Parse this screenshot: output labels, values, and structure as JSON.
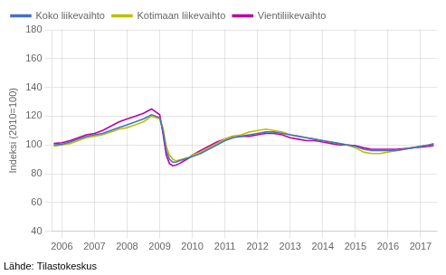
{
  "chart_data": {
    "type": "line",
    "ylabel": "Indeksi (2010=100)",
    "annotations": [
      "Lähde: Tilastokeskus"
    ],
    "xlim": [
      2005.7,
      2017.5
    ],
    "xticks": [
      2006,
      2007,
      2008,
      2009,
      2010,
      2011,
      2012,
      2013,
      2014,
      2015,
      2016,
      2017
    ],
    "ylim": [
      40,
      180
    ],
    "yticks": [
      40,
      60,
      80,
      100,
      120,
      140,
      160,
      180
    ],
    "grid": true,
    "legend": "upper left",
    "x": [
      2005.75,
      2006.0,
      2006.25,
      2006.5,
      2006.75,
      2007.0,
      2007.25,
      2007.5,
      2007.75,
      2008.0,
      2008.25,
      2008.5,
      2008.75,
      2009.0,
      2009.1,
      2009.2,
      2009.3,
      2009.4,
      2009.5,
      2009.6,
      2009.75,
      2009.9,
      2010.0,
      2010.25,
      2010.5,
      2010.75,
      2011.0,
      2011.25,
      2011.5,
      2011.75,
      2012.0,
      2012.25,
      2012.5,
      2012.75,
      2013.0,
      2013.25,
      2013.5,
      2013.75,
      2014.0,
      2014.25,
      2014.5,
      2014.75,
      2015.0,
      2015.25,
      2015.5,
      2015.75,
      2016.0,
      2016.25,
      2016.5,
      2016.75,
      2017.0,
      2017.25,
      2017.4
    ],
    "series": [
      {
        "name": "Koko liikevaihto",
        "color": "#4472C4",
        "values": [
          100,
          100.5,
          102,
          104,
          106,
          107,
          108,
          110,
          112,
          114,
          116,
          118,
          121,
          119,
          110,
          96,
          90,
          88,
          88,
          89,
          90,
          91,
          92,
          94,
          97,
          100,
          103,
          105,
          106,
          107,
          108,
          109,
          109,
          108,
          107,
          106,
          105,
          104,
          103,
          102,
          101,
          100,
          99,
          97,
          96,
          96,
          96,
          96,
          97,
          98,
          99,
          100,
          100.5
        ]
      },
      {
        "name": "Kotimaan liikevaihto",
        "color": "#BFBF00",
        "values": [
          99,
          100,
          101,
          103,
          105,
          106,
          107,
          109,
          111,
          112,
          114,
          116,
          120,
          118,
          112,
          99,
          93,
          90,
          89,
          89.5,
          90.5,
          91.5,
          93,
          95,
          98,
          101,
          104,
          106,
          107,
          109,
          110,
          111,
          110,
          109,
          107,
          106,
          105,
          104,
          103,
          102,
          101,
          100,
          98,
          95,
          94,
          94,
          95,
          96,
          97,
          98,
          99,
          100,
          101
        ]
      },
      {
        "name": "Vientiliikevaihto",
        "color": "#C000A0",
        "values": [
          101,
          101.5,
          103,
          105,
          107,
          108,
          110,
          113,
          116,
          118,
          120,
          122,
          125,
          121,
          108,
          93,
          87,
          85.5,
          86,
          87,
          89,
          91,
          93,
          96,
          99,
          102,
          104,
          106,
          106,
          106,
          107,
          108,
          108,
          107,
          105,
          104,
          103,
          103,
          102,
          101,
          100,
          100,
          99.5,
          98,
          97,
          97,
          97,
          97,
          97.5,
          98,
          98.5,
          99,
          99.5
        ]
      }
    ]
  }
}
